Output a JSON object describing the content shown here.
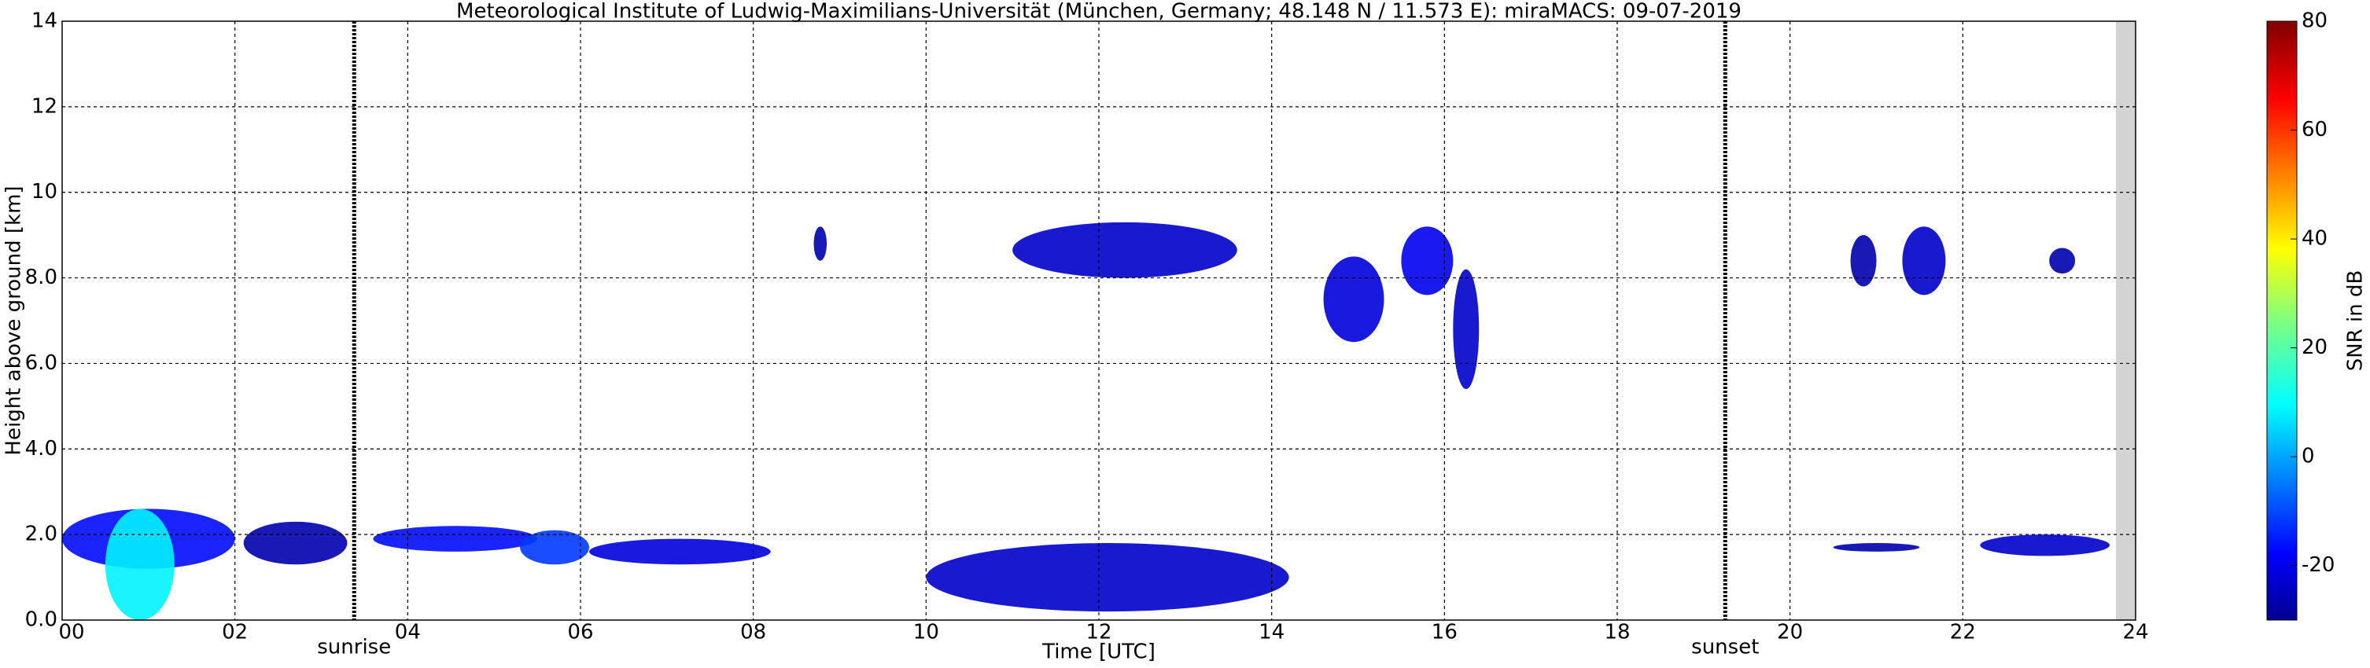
{
  "chart_data": {
    "type": "radar-time-height",
    "title": "Meteorological Institute of Ludwig-Maximilians-Universität (München, Germany; 48.148 N / 11.573 E):    miraMACS: 09-07-2019",
    "x_label": "Time [UTC]",
    "y_label": "Height above ground [km]",
    "colorbar_label": "SNR in dB",
    "xlim": [
      0,
      24
    ],
    "xticks": [
      {
        "value": 0,
        "label": "00"
      },
      {
        "value": 2,
        "label": "02"
      },
      {
        "value": 4,
        "label": "04"
      },
      {
        "value": 6,
        "label": "06"
      },
      {
        "value": 8,
        "label": "08"
      },
      {
        "value": 10,
        "label": "10"
      },
      {
        "value": 12,
        "label": "12"
      },
      {
        "value": 14,
        "label": "14"
      },
      {
        "value": 16,
        "label": "16"
      },
      {
        "value": 18,
        "label": "18"
      },
      {
        "value": 20,
        "label": "20"
      },
      {
        "value": 22,
        "label": "22"
      },
      {
        "value": 24,
        "label": "24"
      }
    ],
    "ylim": [
      0,
      14
    ],
    "yticks": [
      {
        "value": 0,
        "label": "0.0"
      },
      {
        "value": 2,
        "label": "2.0"
      },
      {
        "value": 4,
        "label": "4.0"
      },
      {
        "value": 6,
        "label": "6.0"
      },
      {
        "value": 8,
        "label": "8.0"
      },
      {
        "value": 10,
        "label": "10"
      },
      {
        "value": 12,
        "label": "12"
      },
      {
        "value": 14,
        "label": "14"
      }
    ],
    "clim": [
      -30,
      80
    ],
    "cticks": [
      -20,
      0,
      20,
      40,
      60,
      80
    ],
    "grid": true,
    "annotations": [
      {
        "text": "sunrise",
        "x": 3.38
      },
      {
        "text": "sunset",
        "x": 19.25
      }
    ],
    "echoes": [
      {
        "x": [
          0.0,
          2.0
        ],
        "y": [
          1.2,
          2.6
        ],
        "snr": -15
      },
      {
        "x": [
          0.5,
          1.3
        ],
        "y": [
          0.0,
          2.6
        ],
        "snr": 10
      },
      {
        "x": [
          2.1,
          3.3
        ],
        "y": [
          1.3,
          2.3
        ],
        "snr": -25
      },
      {
        "x": [
          3.6,
          5.5
        ],
        "y": [
          1.6,
          2.2
        ],
        "snr": -15
      },
      {
        "x": [
          5.3,
          6.1
        ],
        "y": [
          1.3,
          2.1
        ],
        "snr": -10
      },
      {
        "x": [
          6.1,
          8.2
        ],
        "y": [
          1.3,
          1.9
        ],
        "snr": -20
      },
      {
        "x": [
          8.7,
          8.85
        ],
        "y": [
          8.4,
          9.2
        ],
        "snr": -25
      },
      {
        "x": [
          11.0,
          13.6
        ],
        "y": [
          8.0,
          9.3
        ],
        "snr": -22
      },
      {
        "x": [
          14.6,
          15.3
        ],
        "y": [
          6.5,
          8.5
        ],
        "snr": -20
      },
      {
        "x": [
          15.5,
          16.1
        ],
        "y": [
          7.6,
          9.2
        ],
        "snr": -18
      },
      {
        "x": [
          16.1,
          16.4
        ],
        "y": [
          5.4,
          8.2
        ],
        "snr": -22
      },
      {
        "x": [
          10.0,
          14.2
        ],
        "y": [
          0.2,
          1.8
        ],
        "snr": -22
      },
      {
        "x": [
          20.7,
          21.0
        ],
        "y": [
          7.8,
          9.0
        ],
        "snr": -25
      },
      {
        "x": [
          21.3,
          21.8
        ],
        "y": [
          7.6,
          9.2
        ],
        "snr": -22
      },
      {
        "x": [
          23.0,
          23.3
        ],
        "y": [
          8.1,
          8.7
        ],
        "snr": -25
      },
      {
        "x": [
          22.2,
          23.7
        ],
        "y": [
          1.5,
          2.0
        ],
        "snr": -22
      },
      {
        "x": [
          20.5,
          21.5
        ],
        "y": [
          1.6,
          1.8
        ],
        "snr": -25
      }
    ]
  }
}
